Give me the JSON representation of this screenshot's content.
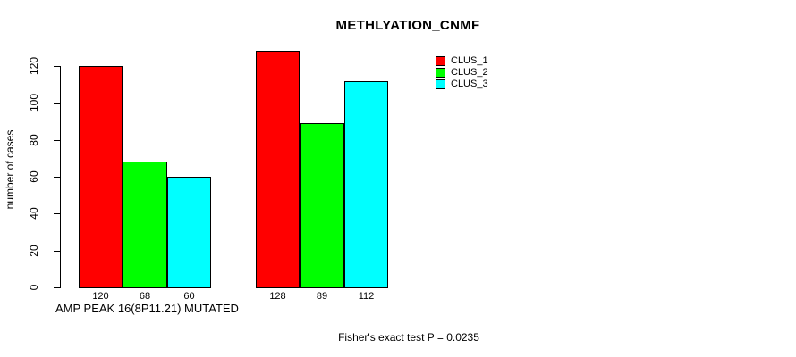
{
  "title": "METHLYATION_CNMF",
  "axes": {
    "ylabel": "number of cases",
    "xlabel": "AMP PEAK 16(8P11.21) MUTATED",
    "ytick_labels": [
      "0",
      "20",
      "40",
      "60",
      "80",
      "100",
      "120"
    ]
  },
  "legend": {
    "items": [
      {
        "label": "CLUS_1",
        "color": "#FF0000"
      },
      {
        "label": "CLUS_2",
        "color": "#00FF00"
      },
      {
        "label": "CLUS_3",
        "color": "#00FFFF"
      }
    ]
  },
  "footnote": "Fisher's exact test P = 0.0235",
  "chart_data": {
    "type": "bar",
    "title": "METHLYATION_CNMF",
    "xlabel": "AMP PEAK 16(8P11.21) MUTATED",
    "ylabel": "number of cases",
    "ylim": [
      0,
      133
    ],
    "yticks": [
      0,
      20,
      40,
      60,
      80,
      100,
      120
    ],
    "grid": false,
    "legend_position": "top-right",
    "n_groups": 2,
    "series": [
      {
        "name": "CLUS_1",
        "color": "#FF0000",
        "values": [
          120,
          128
        ]
      },
      {
        "name": "CLUS_2",
        "color": "#00FF00",
        "values": [
          68,
          89
        ]
      },
      {
        "name": "CLUS_3",
        "color": "#00FFFF",
        "values": [
          60,
          112
        ]
      }
    ],
    "bar_value_labels": [
      [
        120,
        68,
        60
      ],
      [
        128,
        89,
        112
      ]
    ],
    "annotation": "Fisher's exact test P = 0.0235"
  }
}
